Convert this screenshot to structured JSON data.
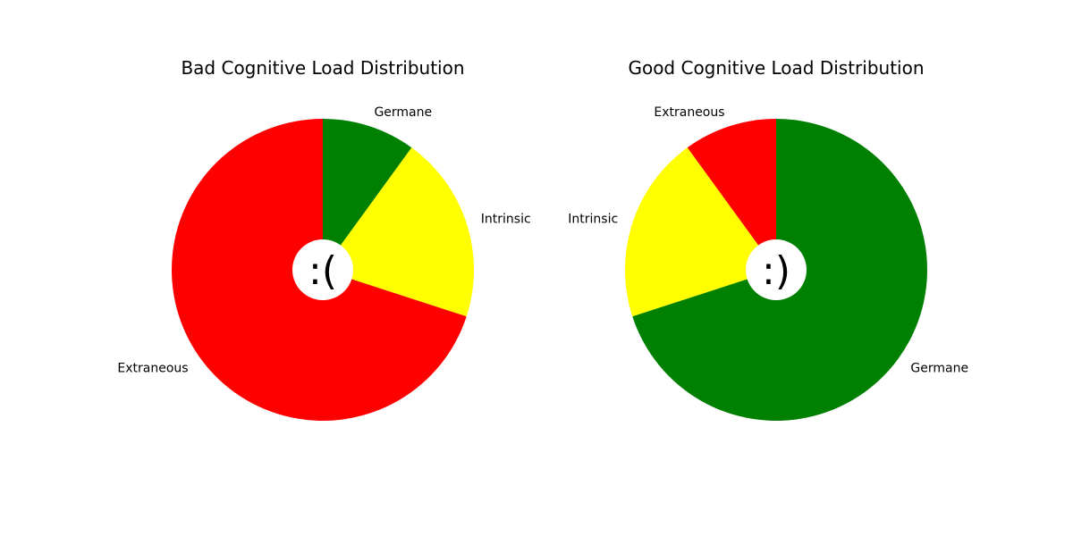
{
  "chart_data": [
    {
      "type": "pie",
      "title": "Bad Cognitive Load Distribution",
      "center_text": ":(",
      "start_angle_deg": 90,
      "direction": "clockwise",
      "slices": [
        {
          "label": "Germane",
          "value": 10,
          "color": "#008000"
        },
        {
          "label": "Intrinsic",
          "value": 20,
          "color": "#ffff00"
        },
        {
          "label": "Extraneous",
          "value": 70,
          "color": "#ff0000"
        }
      ]
    },
    {
      "type": "pie",
      "title": "Good Cognitive Load Distribution",
      "center_text": ":)",
      "start_angle_deg": 90,
      "direction": "counterclockwise",
      "slices": [
        {
          "label": "Extraneous",
          "value": 10,
          "color": "#ff0000"
        },
        {
          "label": "Intrinsic",
          "value": 20,
          "color": "#ffff00"
        },
        {
          "label": "Germane",
          "value": 70,
          "color": "#008000"
        }
      ]
    }
  ]
}
